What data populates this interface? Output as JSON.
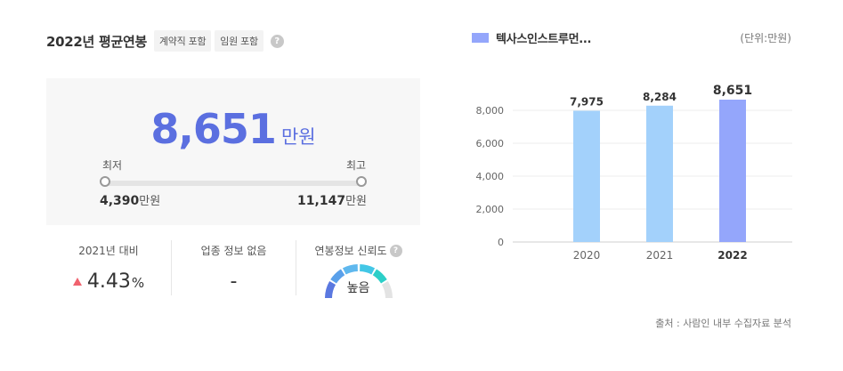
{
  "header": {
    "title": "2022년 평균연봉",
    "tags": [
      "계약직 포함",
      "임원 포함"
    ],
    "help": "?"
  },
  "salary": {
    "value": "8,651",
    "unit": "만원",
    "min_label": "최저",
    "max_label": "최고",
    "min_value": "4,390",
    "max_value": "11,147",
    "range_unit": "만원"
  },
  "stats": {
    "change": {
      "label": "2021년 대비",
      "value": "4.43",
      "unit": "%",
      "direction": "up"
    },
    "industry": {
      "label": "업종 정보 없음",
      "value": "-"
    },
    "reliability": {
      "label": "연봉정보 신뢰도",
      "help": "?",
      "value": "높음"
    }
  },
  "colors": {
    "accent": "#5b6fe0",
    "bar_past": "#a3d1fb",
    "bar_current": "#94a6fb",
    "up": "#f0626e"
  },
  "chart_data": {
    "type": "bar",
    "legend": "텍사스인스트루먼...",
    "unit_label": "(단위:만원)",
    "source": "출처 : 사람인 내부 수집자료 분석",
    "categories": [
      "2020",
      "2021",
      "2022"
    ],
    "values": [
      7975,
      8284,
      8651
    ],
    "value_labels": [
      "7,975",
      "8,284",
      "8,651"
    ],
    "highlight_index": 2,
    "yticks": [
      0,
      2000,
      4000,
      6000,
      8000
    ],
    "ytick_labels": [
      "0",
      "2,000",
      "4,000",
      "6,000",
      "8,000"
    ],
    "ylim": [
      0,
      8651
    ],
    "grid": true
  }
}
